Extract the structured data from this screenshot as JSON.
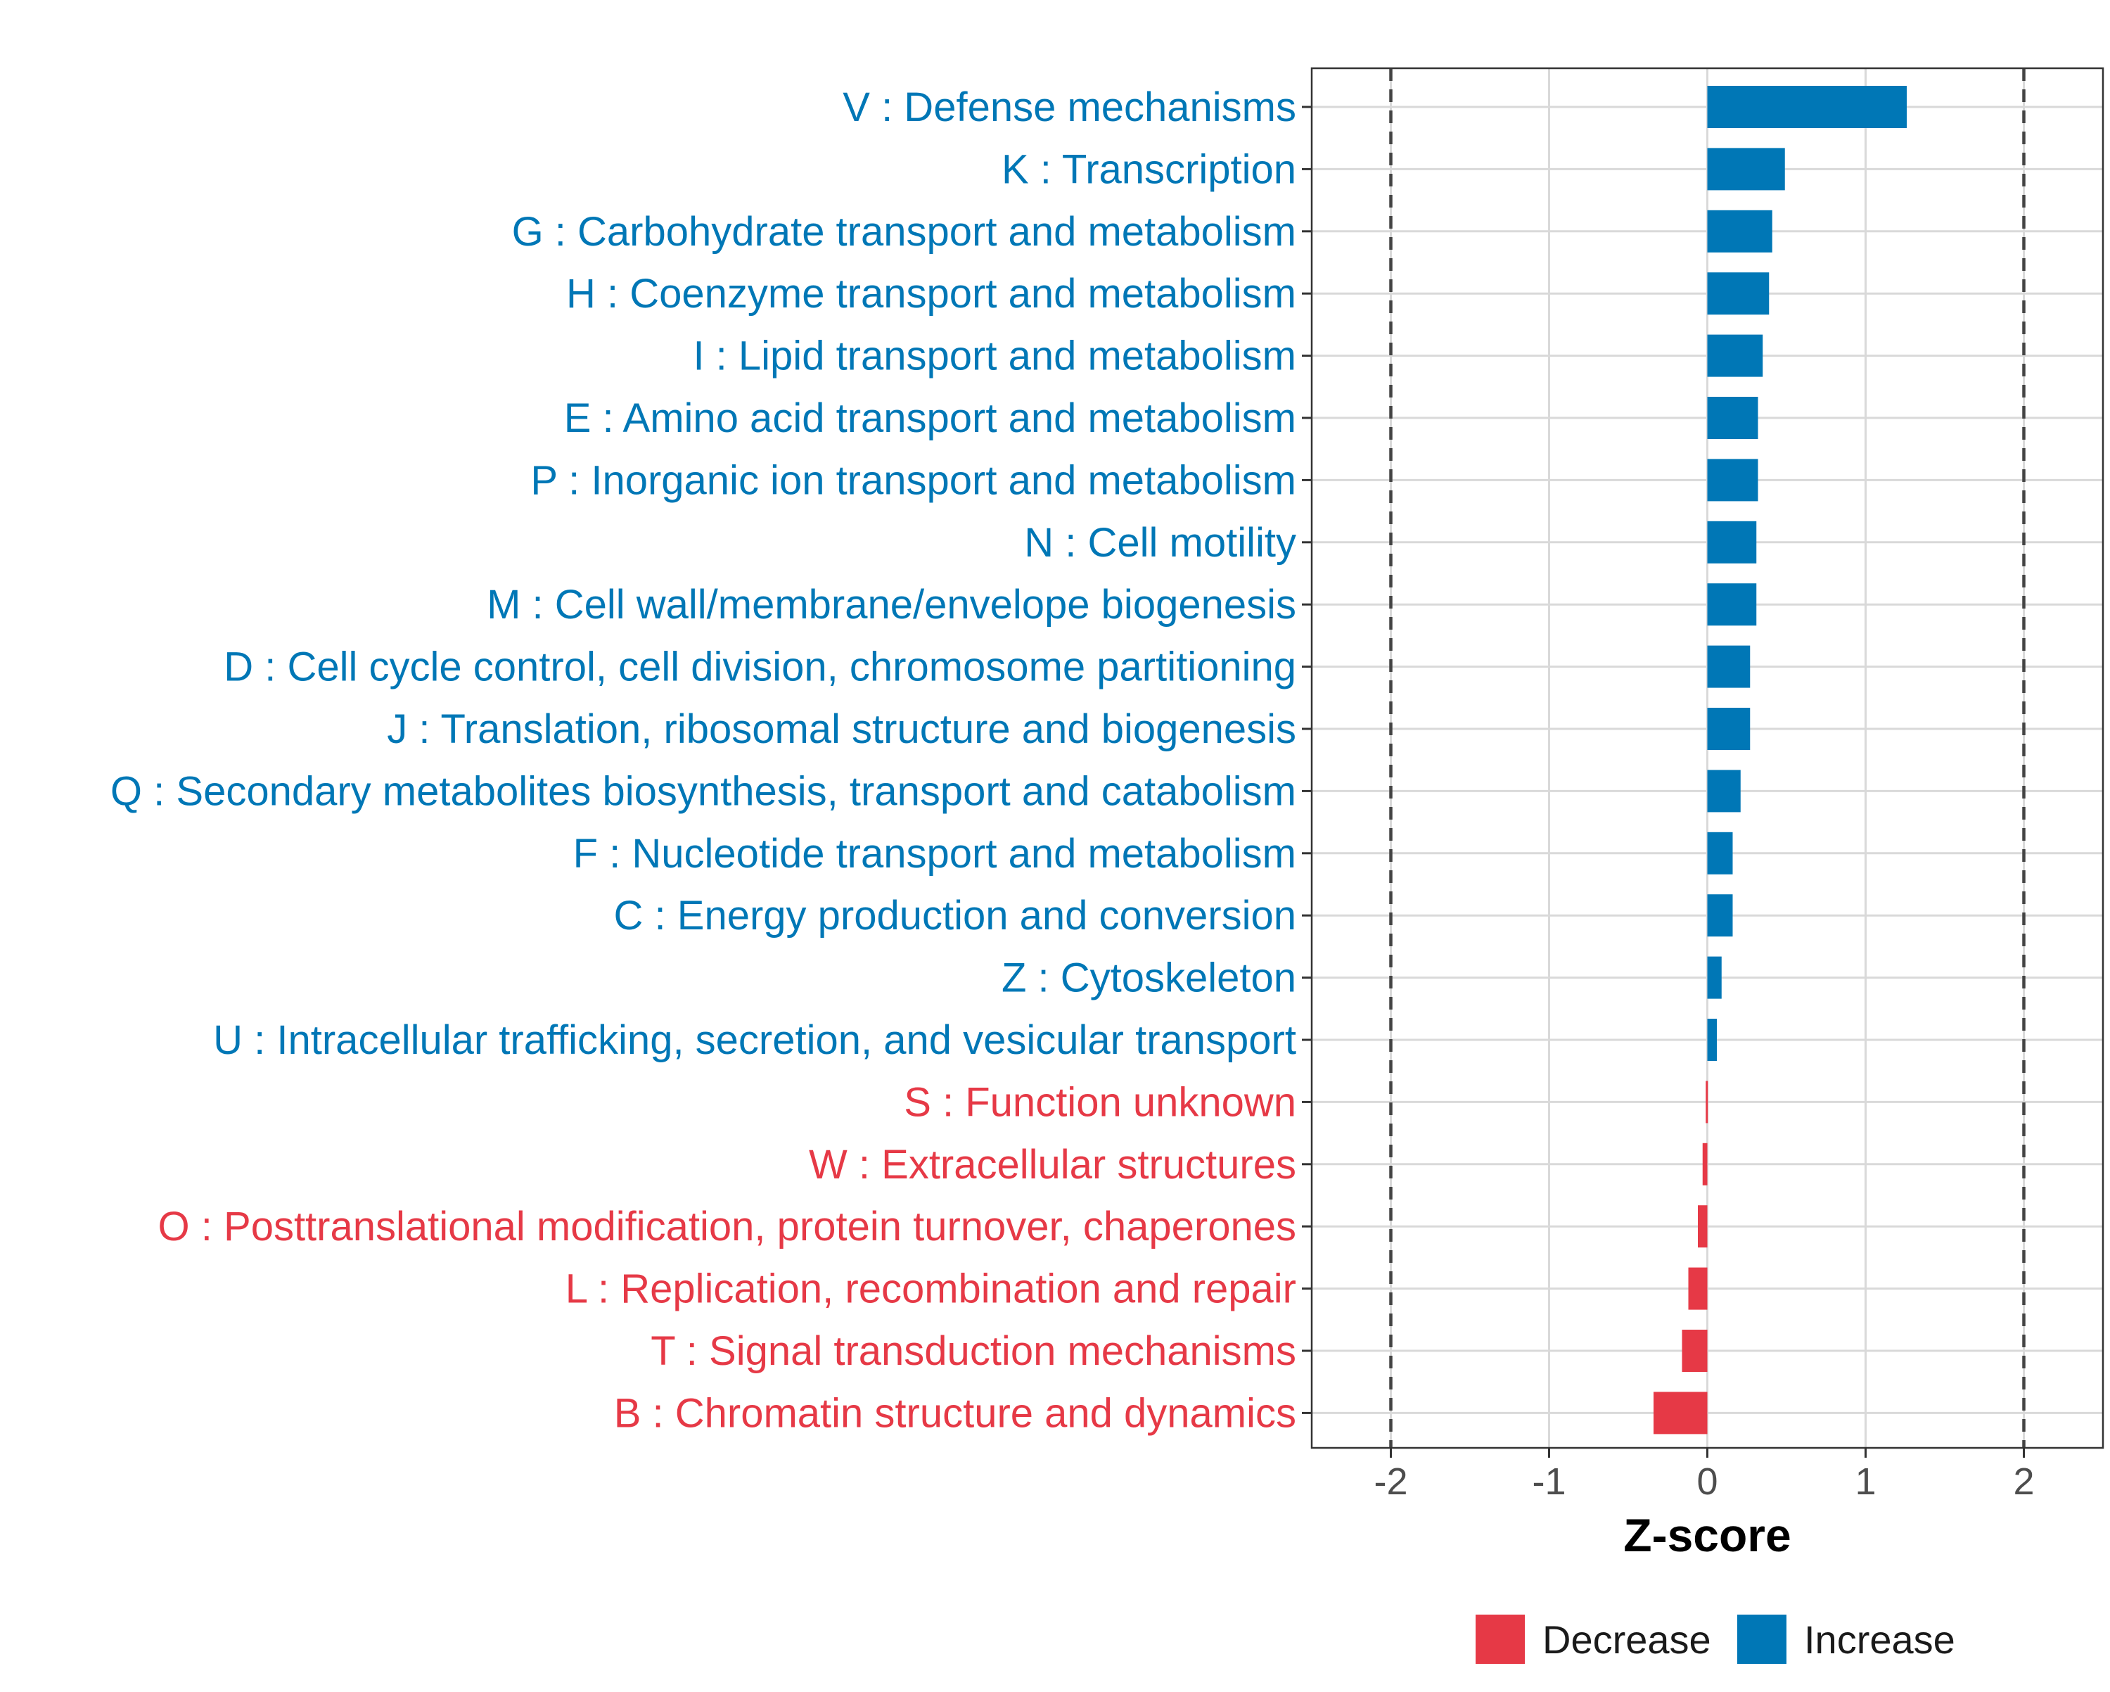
{
  "chart_data": {
    "type": "bar",
    "orientation": "horizontal",
    "xlabel": "Z-score",
    "ylabel": "",
    "xlim": [
      -2.5,
      2.5
    ],
    "xticks": [
      -2,
      -1,
      0,
      1,
      2
    ],
    "xtick_labels": [
      "-2",
      "-1",
      "0",
      "1",
      "2"
    ],
    "reference_lines": [
      -2,
      2
    ],
    "grid": true,
    "legend_position": "bottom",
    "colors": {
      "Decrease": "#E63946",
      "Increase": "#0077B6"
    },
    "legend": [
      {
        "name": "Decrease",
        "color": "#E63946"
      },
      {
        "name": "Increase",
        "color": "#0077B6"
      }
    ],
    "categories": [
      "V : Defense mechanisms",
      "K : Transcription",
      "G : Carbohydrate transport and metabolism",
      "H : Coenzyme transport and metabolism",
      "I : Lipid transport and metabolism",
      "E : Amino acid transport and metabolism",
      "P : Inorganic ion transport and metabolism",
      "N : Cell motility",
      "M : Cell wall/membrane/envelope biogenesis",
      "D : Cell cycle control, cell division, chromosome partitioning",
      "J : Translation, ribosomal structure and biogenesis",
      "Q : Secondary metabolites biosynthesis, transport and catabolism",
      "F : Nucleotide transport and metabolism",
      "C : Energy production and conversion",
      "Z : Cytoskeleton",
      "U : Intracellular trafficking, secretion, and vesicular transport",
      "S : Function unknown",
      "W : Extracellular structures",
      "O : Posttranslational modification, protein turnover, chaperones",
      "L : Replication, recombination and repair",
      "T : Signal transduction mechanisms",
      "B : Chromatin structure and dynamics"
    ],
    "values": [
      1.26,
      0.49,
      0.41,
      0.39,
      0.35,
      0.32,
      0.32,
      0.31,
      0.31,
      0.27,
      0.27,
      0.21,
      0.16,
      0.16,
      0.09,
      0.06,
      -0.01,
      -0.03,
      -0.06,
      -0.12,
      -0.16,
      -0.34
    ],
    "groups": [
      "Increase",
      "Increase",
      "Increase",
      "Increase",
      "Increase",
      "Increase",
      "Increase",
      "Increase",
      "Increase",
      "Increase",
      "Increase",
      "Increase",
      "Increase",
      "Increase",
      "Increase",
      "Increase",
      "Decrease",
      "Decrease",
      "Decrease",
      "Decrease",
      "Decrease",
      "Decrease"
    ]
  }
}
